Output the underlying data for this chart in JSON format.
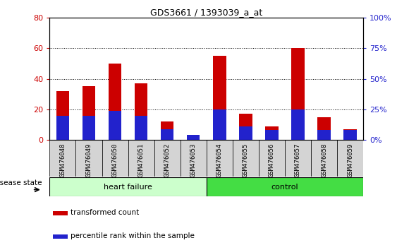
{
  "title": "GDS3661 / 1393039_a_at",
  "samples": [
    "GSM476048",
    "GSM476049",
    "GSM476050",
    "GSM476051",
    "GSM476052",
    "GSM476053",
    "GSM476054",
    "GSM476055",
    "GSM476056",
    "GSM476057",
    "GSM476058",
    "GSM476059"
  ],
  "transformed_count": [
    32,
    35,
    50,
    37,
    12,
    2,
    55,
    17,
    9,
    60,
    15,
    7
  ],
  "percentile_rank_pct": [
    20,
    20,
    24,
    20,
    9,
    4,
    25,
    11,
    8,
    25,
    8,
    8
  ],
  "bar_color_red": "#cc0000",
  "bar_color_blue": "#2222cc",
  "ylim_left": [
    0,
    80
  ],
  "ylim_right": [
    0,
    100
  ],
  "yticks_left": [
    0,
    20,
    40,
    60,
    80
  ],
  "yticks_right": [
    0,
    25,
    50,
    75,
    100
  ],
  "ytick_labels_right": [
    "0%",
    "25%",
    "50%",
    "75%",
    "100%"
  ],
  "heart_failure_color": "#ccffcc",
  "control_color": "#44dd44",
  "groups": [
    {
      "label": "heart failure",
      "start": 0,
      "end": 6
    },
    {
      "label": "control",
      "start": 6,
      "end": 12
    }
  ],
  "disease_state_label": "disease state",
  "legend_items": [
    {
      "label": "transformed count",
      "color": "#cc0000"
    },
    {
      "label": "percentile rank within the sample",
      "color": "#2222cc"
    }
  ],
  "bar_width": 0.5
}
